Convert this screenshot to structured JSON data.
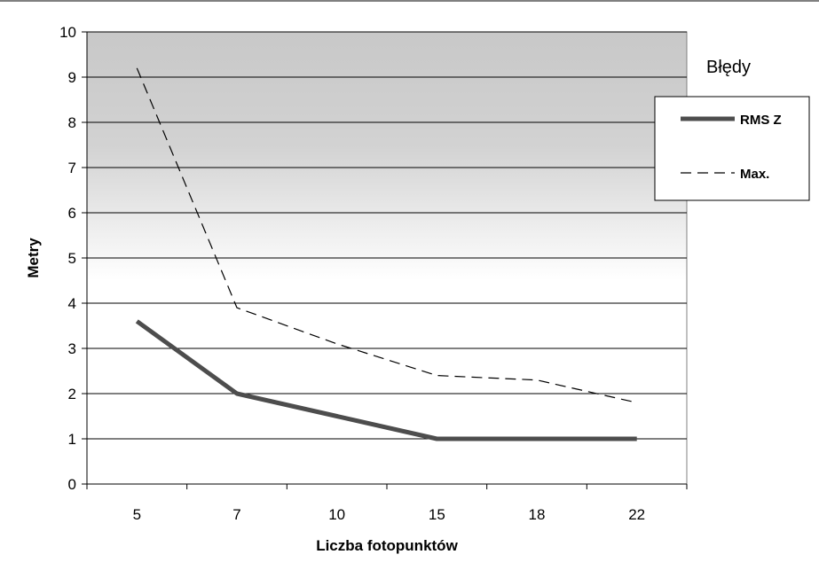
{
  "chart_data": {
    "type": "line",
    "categories": [
      "5",
      "7",
      "10",
      "15",
      "18",
      "22"
    ],
    "series": [
      {
        "name": "RMS Z",
        "values": [
          3.6,
          2.0,
          1.5,
          1.0,
          1.0,
          1.0
        ],
        "color": "#4d4d4d",
        "style": "solid"
      },
      {
        "name": "Max.",
        "values": [
          9.2,
          3.9,
          3.1,
          2.4,
          2.3,
          1.8
        ],
        "color": "#000000",
        "style": "dashed"
      }
    ],
    "xlabel": "Liczba fotopunktów",
    "ylabel": "Metry",
    "ylim": [
      0,
      10
    ],
    "yticks": [
      "0",
      "1",
      "2",
      "3",
      "4",
      "5",
      "6",
      "7",
      "8",
      "9",
      "10"
    ],
    "legend": {
      "title": "Błędy",
      "position": "right"
    },
    "grid": true,
    "background": {
      "top": "#c8c8c8",
      "bottom": "#ffffff"
    }
  }
}
